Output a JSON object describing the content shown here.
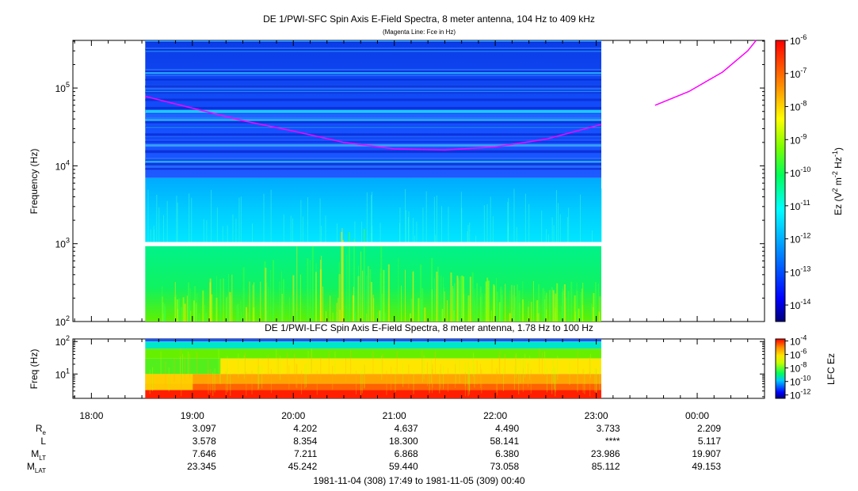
{
  "chart_data": [
    {
      "type": "heatmap",
      "title": "DE 1/PWI-SFC  Spin Axis E-Field Spectra, 8 meter antenna, 104 Hz to 409 kHz",
      "subtitle": "(Magenta Line: Fce in Hz)",
      "ylabel": "Frequency (Hz)",
      "yscale": "log",
      "ylim": [
        100,
        409000
      ],
      "y_ticks": [
        {
          "value": 100,
          "exp": "2"
        },
        {
          "value": 1000,
          "exp": "3"
        },
        {
          "value": 10000,
          "exp": "4"
        },
        {
          "value": 100000,
          "exp": "5"
        }
      ],
      "y_tick_base": "10",
      "xlim": [
        "1981-11-04 17:49",
        "1981-11-05 00:40"
      ],
      "data_coverage": [
        "1981-11-04 18:32",
        "1981-11-04 23:03"
      ],
      "gap_band_hz": [
        930,
        1050
      ],
      "colorbar": {
        "label": "Ez (V",
        "label_sup1": "2",
        "label_mid": " m",
        "label_sup2": "-2",
        "label_mid2": " Hz",
        "label_sup3": "-1",
        "label_end": ")",
        "scale": "log",
        "range": [
          -14.5,
          -6
        ],
        "ticks": [
          {
            "exp": "-6",
            "value": -6
          },
          {
            "exp": "-7",
            "value": -7
          },
          {
            "exp": "-8",
            "value": -8
          },
          {
            "exp": "-9",
            "value": -9
          },
          {
            "exp": "-10",
            "value": -10
          },
          {
            "exp": "-11",
            "value": -11
          },
          {
            "exp": "-12",
            "value": -12
          },
          {
            "exp": "-13",
            "value": -13
          },
          {
            "exp": "-14",
            "value": -14
          }
        ]
      },
      "fce_line": {
        "color": "#ff00ff",
        "segments": [
          [
            [
              "18:32",
              78000
            ],
            [
              "19:30",
              38000
            ],
            [
              "20:00",
              28000
            ],
            [
              "20:30",
              20000
            ],
            [
              "21:00",
              16500
            ],
            [
              "21:30",
              16000
            ],
            [
              "22:00",
              17500
            ],
            [
              "22:30",
              22000
            ],
            [
              "23:03",
              34000
            ]
          ],
          [
            [
              "23:35",
              60000
            ],
            [
              "23:55",
              90000
            ],
            [
              "00:15",
              160000
            ],
            [
              "00:30",
              300000
            ],
            [
              "00:35",
              409000
            ]
          ]
        ]
      }
    },
    {
      "type": "heatmap",
      "title": "DE 1/PWI-LFC  Spin Axis E-Field Spectra, 8 meter antenna, 1.78 Hz to 100 Hz",
      "ylabel": "Freq (Hz)",
      "yscale": "log",
      "ylim": [
        1.78,
        120
      ],
      "y_ticks": [
        {
          "value": 10,
          "exp": "1"
        },
        {
          "value": 100,
          "exp": "2"
        }
      ],
      "y_tick_base": "10",
      "colorbar": {
        "label": "LFC Ez",
        "scale": "log",
        "range": [
          -12.5,
          -3.7
        ],
        "ticks": [
          {
            "exp": "-4",
            "value": -4
          },
          {
            "exp": "-6",
            "value": -6
          },
          {
            "exp": "-8",
            "value": -8
          },
          {
            "exp": "-10",
            "value": -10
          },
          {
            "exp": "-12",
            "value": -12
          }
        ]
      }
    }
  ],
  "x_axis": {
    "tick_labels": [
      "18:00",
      "19:00",
      "20:00",
      "21:00",
      "22:00",
      "23:00",
      "00:00"
    ],
    "tick_times": [
      "18:00",
      "19:00",
      "20:00",
      "21:00",
      "22:00",
      "23:00",
      "00:00"
    ]
  },
  "ephemeris": {
    "rows": [
      {
        "label": "R",
        "sub": "e",
        "values": [
          "3.097",
          "4.202",
          "4.637",
          "4.490",
          "3.733",
          "2.209"
        ]
      },
      {
        "label": "L",
        "sub": "",
        "values": [
          "3.578",
          "8.354",
          "18.300",
          "58.141",
          "****",
          "5.117"
        ]
      },
      {
        "label": "M",
        "sub": "LT",
        "values": [
          "7.646",
          "7.211",
          "6.868",
          "6.380",
          "23.986",
          "19.907"
        ]
      },
      {
        "label": "M",
        "sub": "LAT",
        "values": [
          "23.345",
          "45.242",
          "59.440",
          "73.058",
          "85.112",
          "49.153"
        ]
      }
    ]
  },
  "time_range_label": "1981-11-04 (308) 17:49 to 1981-11-05 (309) 00:40"
}
